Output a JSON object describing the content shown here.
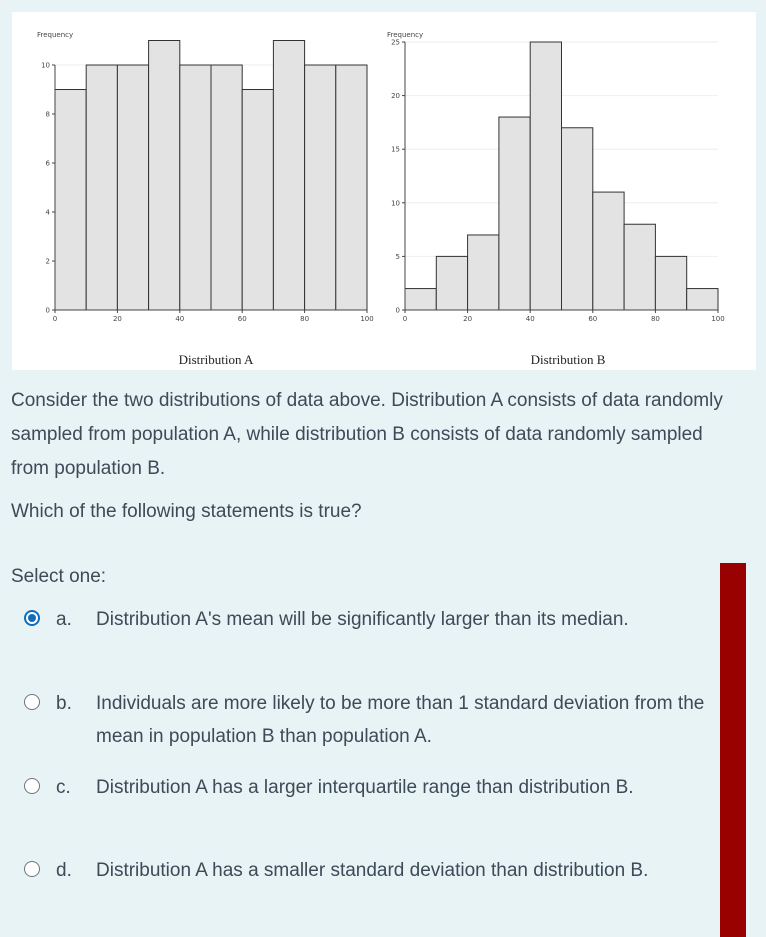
{
  "chart_data": [
    {
      "type": "bar",
      "title": "",
      "ylabel": "Frequency",
      "xlabel": "Distribution A",
      "xlim": [
        0,
        100
      ],
      "ylim": [
        0,
        10
      ],
      "bin_edges": [
        0,
        10,
        20,
        30,
        40,
        50,
        60,
        70,
        80,
        90,
        100
      ],
      "values": [
        9,
        10,
        10,
        11,
        10,
        10,
        9,
        11,
        10,
        10
      ],
      "x_ticks": [
        0,
        20,
        40,
        60,
        80,
        100
      ],
      "y_ticks": [
        0,
        2,
        4,
        6,
        8,
        10
      ],
      "grid": true
    },
    {
      "type": "bar",
      "title": "",
      "ylabel": "Frequency",
      "xlabel": "Distribution B",
      "xlim": [
        0,
        100
      ],
      "ylim": [
        0,
        25
      ],
      "bin_edges": [
        0,
        10,
        20,
        30,
        40,
        50,
        60,
        70,
        80,
        90,
        100
      ],
      "values": [
        2,
        5,
        7,
        18,
        25,
        17,
        11,
        8,
        5,
        2
      ],
      "x_ticks": [
        0,
        20,
        40,
        60,
        80,
        100
      ],
      "y_ticks": [
        0,
        5,
        10,
        15,
        20,
        25
      ],
      "grid": true
    }
  ],
  "question": {
    "paragraph1": "Consider the two distributions of data above. Distribution A consists of data randomly sampled from population A, while distribution B consists of data randomly sampled from population B.",
    "paragraph2": "Which of the following statements is true?",
    "select_label": "Select one:"
  },
  "options": [
    {
      "letter": "a.",
      "text": "Distribution A's mean will be significantly larger than its median.",
      "selected": true
    },
    {
      "letter": "b.",
      "text": "Individuals are more likely to be more than 1 standard deviation from the mean in population B than population A.",
      "selected": false
    },
    {
      "letter": "c.",
      "text": "Distribution A has a larger interquartile range than distribution B.",
      "selected": false
    },
    {
      "letter": "d.",
      "text": "Distribution A has a smaller standard deviation than distribution B.",
      "selected": false
    }
  ],
  "colors": {
    "accent": "#0f6cbf",
    "flag": "#990000",
    "bar_fill": "#e3e3e3"
  }
}
